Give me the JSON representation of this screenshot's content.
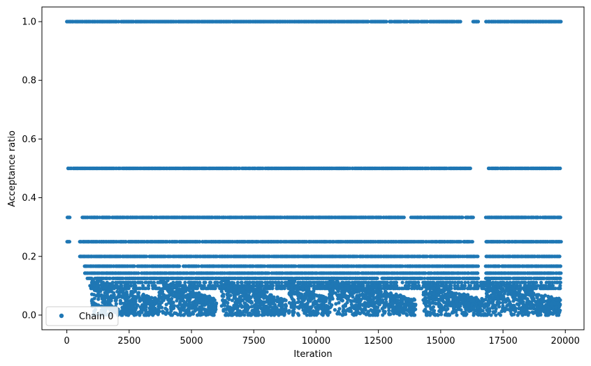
{
  "chart_data": {
    "type": "scatter",
    "title": "",
    "xlabel": "Iteration",
    "ylabel": "Acceptance ratio",
    "xlim": [
      -1000,
      20750
    ],
    "ylim": [
      -0.05,
      1.05
    ],
    "x_ticks": [
      0,
      2500,
      5000,
      7500,
      10000,
      12500,
      15000,
      17500,
      20000
    ],
    "x_tick_labels": [
      "0",
      "2500",
      "5000",
      "7500",
      "10000",
      "12500",
      "15000",
      "17500",
      "20000"
    ],
    "y_ticks": [
      0.0,
      0.2,
      0.4,
      0.6,
      0.8,
      1.0
    ],
    "y_tick_labels": [
      "0.0",
      "0.2",
      "0.4",
      "0.6",
      "0.8",
      "1.0"
    ],
    "grid": false,
    "legend_position": "lower-left",
    "series": [
      {
        "name": "Chain 0",
        "color": "#1f77b4",
        "marker": "circle",
        "x_range": [
          0,
          19800
        ],
        "discrete_levels": [
          1.0,
          0.5,
          0.333,
          0.25,
          0.2,
          0.1667,
          0.1429,
          0.125,
          0.1111,
          0.1,
          0.0909
        ],
        "level_segments": {
          "1.0": [
            [
              0,
              15800
            ],
            [
              16300,
              16500
            ],
            [
              16800,
              19800
            ]
          ],
          "0.5": [
            [
              0,
              16200
            ],
            [
              16900,
              19800
            ]
          ],
          "0.333": [
            [
              0,
              100
            ],
            [
              600,
              13500
            ],
            [
              13800,
              16300
            ],
            [
              16800,
              19800
            ]
          ],
          "0.25": [
            [
              0,
              100
            ],
            [
              500,
              16300
            ],
            [
              16800,
              19800
            ]
          ],
          "0.2": [
            [
              500,
              16500
            ],
            [
              16800,
              19800
            ]
          ],
          "0.1667": [
            [
              700,
              16500
            ],
            [
              16800,
              19800
            ]
          ],
          "0.1429": [
            [
              700,
              16500
            ],
            [
              16800,
              19800
            ]
          ],
          "0.125": [
            [
              800,
              16500
            ],
            [
              16800,
              19800
            ]
          ]
        },
        "dense_low_clusters": [
          {
            "x_range": [
              1000,
              3700
            ],
            "y_max": 0.13
          },
          {
            "x_range": [
              3700,
              6000
            ],
            "y_max": 0.13
          },
          {
            "x_range": [
              6200,
              8800
            ],
            "y_max": 0.13
          },
          {
            "x_range": [
              8900,
              10500
            ],
            "y_max": 0.13
          },
          {
            "x_range": [
              10500,
              14000
            ],
            "y_max": 0.13
          },
          {
            "x_range": [
              14300,
              16800
            ],
            "y_max": 0.12
          },
          {
            "x_range": [
              16800,
              19800
            ],
            "y_max": 0.13
          }
        ]
      }
    ]
  }
}
